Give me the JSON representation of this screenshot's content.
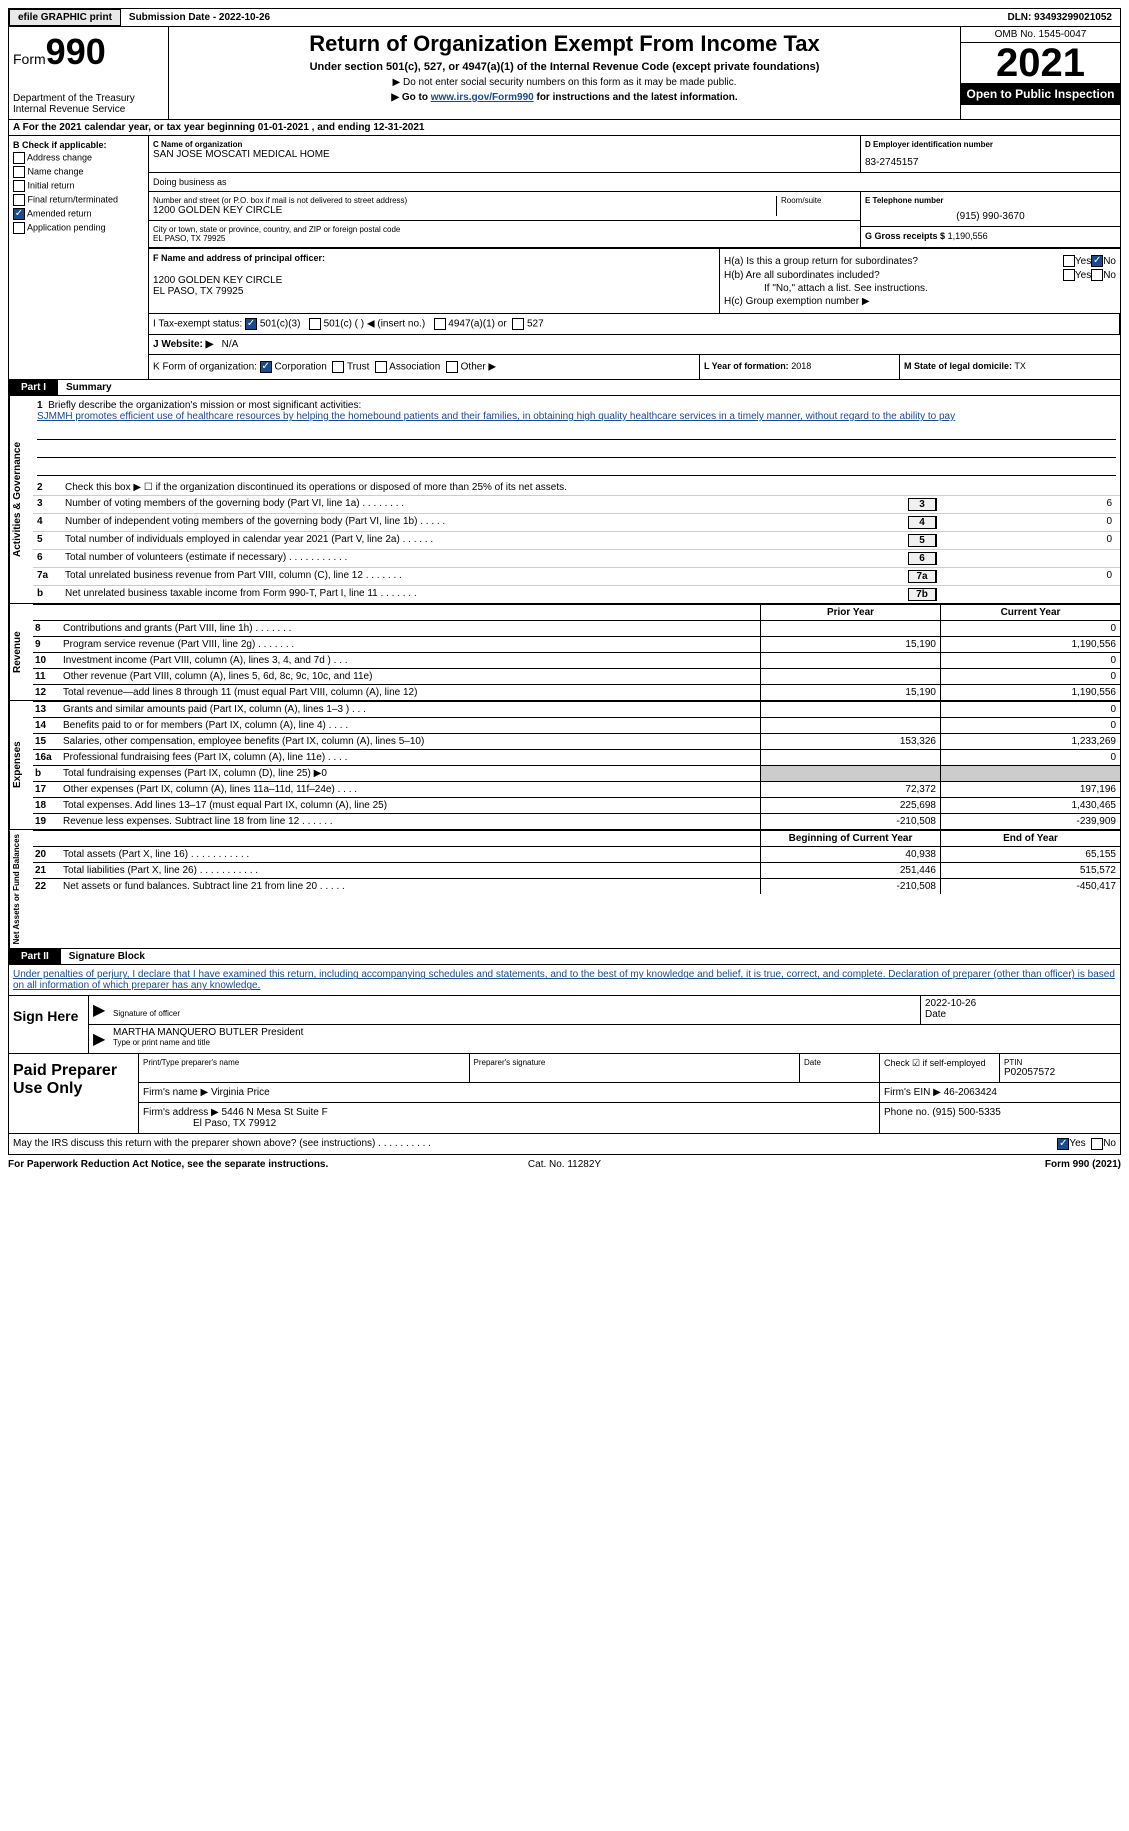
{
  "topbar": {
    "efile_btn": "efile GRAPHIC print",
    "submission": "Submission Date - 2022-10-26",
    "dln": "DLN: 93493299021052"
  },
  "header": {
    "form_label": "Form",
    "form_number": "990",
    "dept": "Department of the Treasury\nInternal Revenue Service",
    "title": "Return of Organization Exempt From Income Tax",
    "sub1": "Under section 501(c), 527, or 4947(a)(1) of the Internal Revenue Code (except private foundations)",
    "sub2": "▶ Do not enter social security numbers on this form as it may be made public.",
    "sub3_prefix": "▶ Go to ",
    "sub3_link": "www.irs.gov/Form990",
    "sub3_suffix": " for instructions and the latest information.",
    "omb": "OMB No. 1545-0047",
    "year": "2021",
    "inspect": "Open to Public Inspection"
  },
  "row_a": "A For the 2021 calendar year, or tax year beginning 01-01-2021    , and ending 12-31-2021",
  "col_b": {
    "hdr": "B Check if applicable:",
    "opts": [
      "Address change",
      "Name change",
      "Initial return",
      "Final return/terminated",
      "Amended return",
      "Application pending"
    ],
    "checked_idx": 4
  },
  "c": {
    "name_lbl": "C Name of organization",
    "name": "SAN JOSE MOSCATI MEDICAL HOME",
    "dba_lbl": "Doing business as",
    "street_lbl": "Number and street (or P.O. box if mail is not delivered to street address)",
    "street": "1200 GOLDEN KEY CIRCLE",
    "room_lbl": "Room/suite",
    "city_lbl": "City or town, state or province, country, and ZIP or foreign postal code",
    "city": "EL PASO, TX  79925"
  },
  "d": {
    "lbl": "D Employer identification number",
    "val": "83-2745157"
  },
  "e": {
    "lbl": "E Telephone number",
    "val": "(915) 990-3670"
  },
  "g": {
    "lbl": "G Gross receipts $",
    "val": "1,190,556"
  },
  "f": {
    "lbl": "F Name and address of principal officer:",
    "addr1": "1200 GOLDEN KEY CIRCLE",
    "addr2": "EL PASO, TX  79925"
  },
  "h": {
    "a_q": "H(a)  Is this a group return for subordinates?",
    "b_q": "H(b)  Are all subordinates included?",
    "b_note": "If \"No,\" attach a list. See instructions.",
    "c_q": "H(c)  Group exemption number ▶"
  },
  "i": {
    "lbl": "I   Tax-exempt status:",
    "opts": [
      "501(c)(3)",
      "501(c) (  ) ◀ (insert no.)",
      "4947(a)(1) or",
      "527"
    ]
  },
  "j": {
    "lbl": "J   Website: ▶",
    "val": "N/A"
  },
  "k": {
    "lbl": "K Form of organization:",
    "opts": [
      "Corporation",
      "Trust",
      "Association",
      "Other ▶"
    ]
  },
  "l": {
    "lbl": "L Year of formation:",
    "val": "2018"
  },
  "m": {
    "lbl": "M State of legal domicile:",
    "val": "TX"
  },
  "part1": {
    "tab": "Part I",
    "title": "Summary"
  },
  "mission": {
    "num": "1",
    "lbl": "Briefly describe the organization's mission or most significant activities:",
    "text": "SJMMH promotes efficient use of healthcare resources by helping the homebound patients and their families, in obtaining high quality healthcare services in a timely manner, without regard to the ability to pay"
  },
  "gov_lines": [
    {
      "n": "2",
      "d": "Check this box ▶ ☐ if the organization discontinued its operations or disposed of more than 25% of its net assets.",
      "box": "",
      "v": ""
    },
    {
      "n": "3",
      "d": "Number of voting members of the governing body (Part VI, line 1a)   .    .    .    .    .    .    .    .",
      "box": "3",
      "v": "6"
    },
    {
      "n": "4",
      "d": "Number of independent voting members of the governing body (Part VI, line 1b)   .    .    .    .    .",
      "box": "4",
      "v": "0"
    },
    {
      "n": "5",
      "d": "Total number of individuals employed in calendar year 2021 (Part V, line 2a)   .    .    .    .    .    .",
      "box": "5",
      "v": "0"
    },
    {
      "n": "6",
      "d": "Total number of volunteers (estimate if necessary)    .    .    .    .    .    .    .    .    .    .    .",
      "box": "6",
      "v": ""
    },
    {
      "n": "7a",
      "d": "Total unrelated business revenue from Part VIII, column (C), line 12    .    .    .    .    .    .    .",
      "box": "7a",
      "v": "0"
    },
    {
      "n": "b",
      "d": "Net unrelated business taxable income from Form 990-T, Part I, line 11   .    .    .    .    .    .    .",
      "box": "7b",
      "v": ""
    }
  ],
  "col_hdr": {
    "c1": "Prior Year",
    "c2": "Current Year"
  },
  "revenue": [
    {
      "n": "8",
      "d": "Contributions and grants (Part VIII, line 1h)    .    .    .    .    .    .    .",
      "c1": "",
      "c2": "0"
    },
    {
      "n": "9",
      "d": "Program service revenue (Part VIII, line 2g)    .    .    .    .    .    .    .",
      "c1": "15,190",
      "c2": "1,190,556"
    },
    {
      "n": "10",
      "d": "Investment income (Part VIII, column (A), lines 3, 4, and 7d )    .    .    .",
      "c1": "",
      "c2": "0"
    },
    {
      "n": "11",
      "d": "Other revenue (Part VIII, column (A), lines 5, 6d, 8c, 9c, 10c, and 11e)",
      "c1": "",
      "c2": "0"
    },
    {
      "n": "12",
      "d": "Total revenue—add lines 8 through 11 (must equal Part VIII, column (A), line 12)",
      "c1": "15,190",
      "c2": "1,190,556"
    }
  ],
  "expenses": [
    {
      "n": "13",
      "d": "Grants and similar amounts paid (Part IX, column (A), lines 1–3 )   .    .    .",
      "c1": "",
      "c2": "0"
    },
    {
      "n": "14",
      "d": "Benefits paid to or for members (Part IX, column (A), line 4)   .    .    .    .",
      "c1": "",
      "c2": "0"
    },
    {
      "n": "15",
      "d": "Salaries, other compensation, employee benefits (Part IX, column (A), lines 5–10)",
      "c1": "153,326",
      "c2": "1,233,269"
    },
    {
      "n": "16a",
      "d": "Professional fundraising fees (Part IX, column (A), line 11e)   .    .    .    .",
      "c1": "",
      "c2": "0"
    },
    {
      "n": "b",
      "d": "Total fundraising expenses (Part IX, column (D), line 25) ▶0",
      "c1": "gray",
      "c2": "gray"
    },
    {
      "n": "17",
      "d": "Other expenses (Part IX, column (A), lines 11a–11d, 11f–24e)   .    .    .    .",
      "c1": "72,372",
      "c2": "197,196"
    },
    {
      "n": "18",
      "d": "Total expenses. Add lines 13–17 (must equal Part IX, column (A), line 25)",
      "c1": "225,698",
      "c2": "1,430,465"
    },
    {
      "n": "19",
      "d": "Revenue less expenses. Subtract line 18 from line 12  .    .    .    .    .    .",
      "c1": "-210,508",
      "c2": "-239,909"
    }
  ],
  "na_hdr": {
    "c1": "Beginning of Current Year",
    "c2": "End of Year"
  },
  "netassets": [
    {
      "n": "20",
      "d": "Total assets (Part X, line 16)   .    .    .    .    .    .    .    .    .    .    .",
      "c1": "40,938",
      "c2": "65,155"
    },
    {
      "n": "21",
      "d": "Total liabilities (Part X, line 26)  .    .    .    .    .    .    .    .    .    .    .",
      "c1": "251,446",
      "c2": "515,572"
    },
    {
      "n": "22",
      "d": "Net assets or fund balances. Subtract line 21 from line 20  .    .    .    .    .",
      "c1": "-210,508",
      "c2": "-450,417"
    }
  ],
  "part2": {
    "tab": "Part II",
    "title": "Signature Block"
  },
  "sig_text": "Under penalties of perjury, I declare that I have examined this return, including accompanying schedules and statements, and to the best of my knowledge and belief, it is true, correct, and complete. Declaration of preparer (other than officer) is based on all information of which preparer has any knowledge.",
  "sign": {
    "left": "Sign Here",
    "sig_lbl": "Signature of officer",
    "date": "2022-10-26",
    "date_lbl": "Date",
    "name": "MARTHA MANQUERO BUTLER  President",
    "name_lbl": "Type or print name and title"
  },
  "prep": {
    "left": "Paid Preparer Use Only",
    "r1": {
      "name_lbl": "Print/Type preparer's name",
      "sig_lbl": "Preparer's signature",
      "date_lbl": "Date",
      "check_lbl": "Check ☑ if self-employed",
      "ptin_lbl": "PTIN",
      "ptin": "P02057572"
    },
    "r2": {
      "firm_lbl": "Firm's name    ▶",
      "firm": "Virginia Price",
      "ein_lbl": "Firm's EIN ▶",
      "ein": "46-2063424"
    },
    "r3": {
      "addr_lbl": "Firm's address ▶",
      "addr1": "5446 N Mesa St Suite F",
      "addr2": "El Paso, TX  79912",
      "phone_lbl": "Phone no.",
      "phone": "(915) 500-5335"
    }
  },
  "footer_q": "May the IRS discuss this return with the preparer shown above? (see instructions)    .    .    .    .    .    .    .    .    .    .",
  "last": {
    "l": "For Paperwork Reduction Act Notice, see the separate instructions.",
    "m": "Cat. No. 11282Y",
    "r": "Form 990 (2021)"
  },
  "vtabs": {
    "gov": "Activities & Governance",
    "rev": "Revenue",
    "exp": "Expenses",
    "na": "Net Assets or Fund Balances"
  }
}
